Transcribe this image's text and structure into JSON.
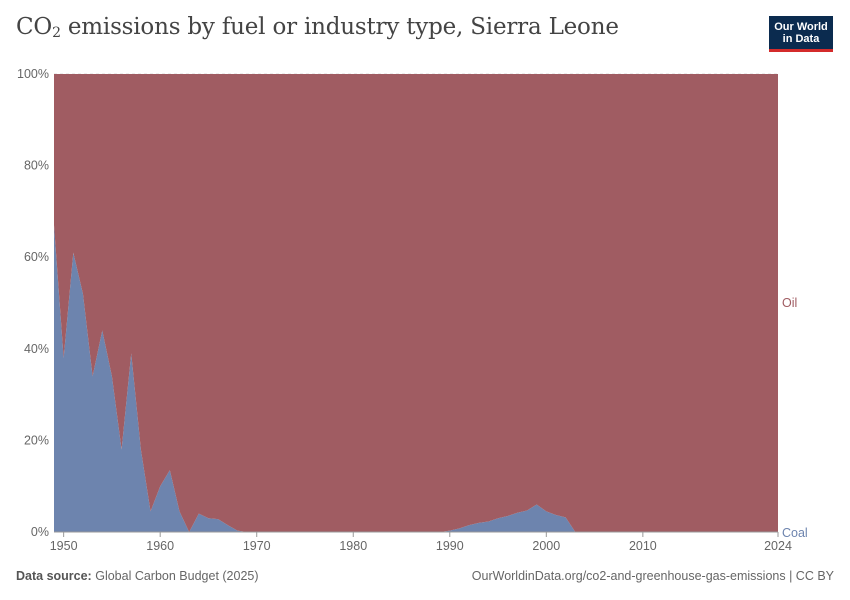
{
  "header": {
    "title_main": "CO",
    "title_sub": "2",
    "title_rest": " emissions by fuel or industry type, Sierra Leone",
    "logo_line1": "Our World",
    "logo_line2": "in Data"
  },
  "footer": {
    "source_label": "Data source:",
    "source_value": "Global Carbon Budget (2025)",
    "url": "OurWorldinData.org/co2-and-greenhouse-gas-emissions | CC BY"
  },
  "colors": {
    "coal": "#6d84ae",
    "oil": "#a05c62",
    "grid": "#dddddd",
    "axis_text": "#666666"
  },
  "chart_data": {
    "type": "area",
    "stacked": true,
    "normalized_percent": true,
    "x_range": [
      1949,
      2024
    ],
    "ylim": [
      0,
      100
    ],
    "y_ticks": [
      0,
      20,
      40,
      60,
      80,
      100
    ],
    "y_tick_labels": [
      "0%",
      "20%",
      "40%",
      "60%",
      "80%",
      "100%"
    ],
    "x_ticks": [
      1950,
      1960,
      1970,
      1980,
      1990,
      2000,
      2010,
      2024
    ],
    "x_tick_labels": [
      "1950",
      "1960",
      "1970",
      "1980",
      "1990",
      "2000",
      "2010",
      "2024"
    ],
    "x": [
      1949,
      1950,
      1951,
      1952,
      1953,
      1954,
      1955,
      1956,
      1957,
      1958,
      1959,
      1960,
      1961,
      1962,
      1963,
      1964,
      1965,
      1966,
      1967,
      1968,
      1969,
      1970,
      1971,
      1972,
      1973,
      1974,
      1975,
      1976,
      1977,
      1978,
      1979,
      1980,
      1981,
      1982,
      1983,
      1984,
      1985,
      1986,
      1987,
      1988,
      1989,
      1990,
      1991,
      1992,
      1993,
      1994,
      1995,
      1996,
      1997,
      1998,
      1999,
      2000,
      2001,
      2002,
      2003,
      2004,
      2005,
      2006,
      2007,
      2008,
      2009,
      2010,
      2011,
      2012,
      2013,
      2014,
      2015,
      2016,
      2017,
      2018,
      2019,
      2020,
      2021,
      2022,
      2023,
      2024
    ],
    "series": [
      {
        "name": "Coal",
        "values": [
          67,
          38,
          61,
          52,
          34,
          44,
          34,
          18,
          39,
          18,
          4.5,
          10,
          13.5,
          4.5,
          0,
          4,
          3,
          2.8,
          1.5,
          0.3,
          0,
          0,
          0,
          0,
          0,
          0,
          0,
          0,
          0,
          0,
          0,
          0,
          0,
          0,
          0,
          0,
          0,
          0,
          0,
          0,
          0,
          0.3,
          0.8,
          1.5,
          2,
          2.3,
          3,
          3.5,
          4.2,
          4.7,
          6,
          4.5,
          3.7,
          3.2,
          0,
          0,
          0,
          0,
          0,
          0,
          0,
          0,
          0,
          0,
          0,
          0,
          0,
          0,
          0,
          0,
          0,
          0,
          0,
          0,
          0,
          0
        ]
      },
      {
        "name": "Oil",
        "values": [
          33,
          62,
          39,
          48,
          66,
          56,
          66,
          82,
          61,
          82,
          95.5,
          90,
          86.5,
          95.5,
          100,
          96,
          97,
          97.2,
          98.5,
          99.7,
          100,
          100,
          100,
          100,
          100,
          100,
          100,
          100,
          100,
          100,
          100,
          100,
          100,
          100,
          100,
          100,
          100,
          100,
          100,
          100,
          100,
          99.7,
          99.2,
          98.5,
          98,
          97.7,
          97,
          96.5,
          95.8,
          95.3,
          94,
          95.5,
          96.3,
          96.8,
          100,
          100,
          100,
          100,
          100,
          100,
          100,
          100,
          100,
          100,
          100,
          100,
          100,
          100,
          100,
          100,
          100,
          100,
          100,
          100,
          100,
          100
        ]
      }
    ]
  }
}
